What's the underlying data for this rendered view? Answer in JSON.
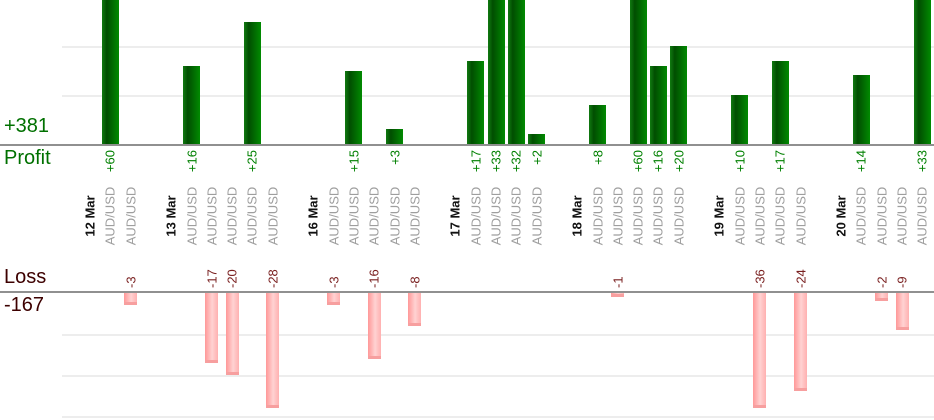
{
  "chart_data": {
    "type": "bar",
    "description": "Per-trade profit and loss bar chart grouped by date, profits above upper axis, losses below lower axis",
    "groups": [
      {
        "date": "12 Mar",
        "trades": [
          {
            "symbol": "AUD/USD",
            "value": 60
          },
          {
            "symbol": "AUD/USD",
            "value": -3
          }
        ]
      },
      {
        "date": "13 Mar",
        "trades": [
          {
            "symbol": "AUD/USD",
            "value": 16
          },
          {
            "symbol": "AUD/USD",
            "value": -17
          },
          {
            "symbol": "AUD/USD",
            "value": -20
          },
          {
            "symbol": "AUD/USD",
            "value": 25
          },
          {
            "symbol": "AUD/USD",
            "value": -28
          }
        ]
      },
      {
        "date": "16 Mar",
        "trades": [
          {
            "symbol": "AUD/USD",
            "value": -3
          },
          {
            "symbol": "AUD/USD",
            "value": 15
          },
          {
            "symbol": "AUD/USD",
            "value": -16
          },
          {
            "symbol": "AUD/USD",
            "value": 3
          },
          {
            "symbol": "AUD/USD",
            "value": -8
          }
        ]
      },
      {
        "date": "17 Mar",
        "trades": [
          {
            "symbol": "AUD/USD",
            "value": 17
          },
          {
            "symbol": "AUD/USD",
            "value": 33
          },
          {
            "symbol": "AUD/USD",
            "value": 32
          },
          {
            "symbol": "AUD/USD",
            "value": 2
          }
        ]
      },
      {
        "date": "18 Mar",
        "trades": [
          {
            "symbol": "AUD/USD",
            "value": 8
          },
          {
            "symbol": "AUD/USD",
            "value": -1
          },
          {
            "symbol": "AUD/USD",
            "value": 60
          },
          {
            "symbol": "AUD/USD",
            "value": 16
          },
          {
            "symbol": "AUD/USD",
            "value": 20
          }
        ]
      },
      {
        "date": "19 Mar",
        "trades": [
          {
            "symbol": "AUD/USD",
            "value": 10
          },
          {
            "symbol": "AUD/USD",
            "value": -36
          },
          {
            "symbol": "AUD/USD",
            "value": 17
          },
          {
            "symbol": "AUD/USD",
            "value": -24
          }
        ]
      },
      {
        "date": "20 Mar",
        "trades": [
          {
            "symbol": "AUD/USD",
            "value": 14
          },
          {
            "symbol": "AUD/USD",
            "value": -2
          },
          {
            "symbol": "AUD/USD",
            "value": -9
          },
          {
            "symbol": "AUD/USD",
            "value": 33
          }
        ]
      }
    ],
    "summary": {
      "profit_label": "Profit",
      "profit_total": "+381",
      "loss_label": "Loss",
      "loss_total": "-167"
    },
    "axes": {
      "grid": true,
      "legend": false,
      "profit_gridline_step": 10,
      "loss_gridline_step": 10,
      "profit_axis_range": [
        0,
        30
      ],
      "loss_axis_range": [
        0,
        -28
      ]
    },
    "colors": {
      "profit_bar_left": "#117a11",
      "profit_bar_dark": "#014e01",
      "profit_bar_light": "#018a01",
      "loss_bar_left": "#ff9898",
      "loss_bar_mid": "#ffd2d2",
      "loss_bar_right": "#ffb0b0",
      "loss_bar_cap": "#f79f9f",
      "profit_value_text": "#008000",
      "loss_value_text": "#7a2020",
      "profit_header_text": "#007000",
      "loss_header_text": "#3d0000",
      "date_text": "#111111",
      "symbol_text": "#9e9e9e",
      "axis_line": "#909090",
      "gridline": "#ededed"
    }
  }
}
